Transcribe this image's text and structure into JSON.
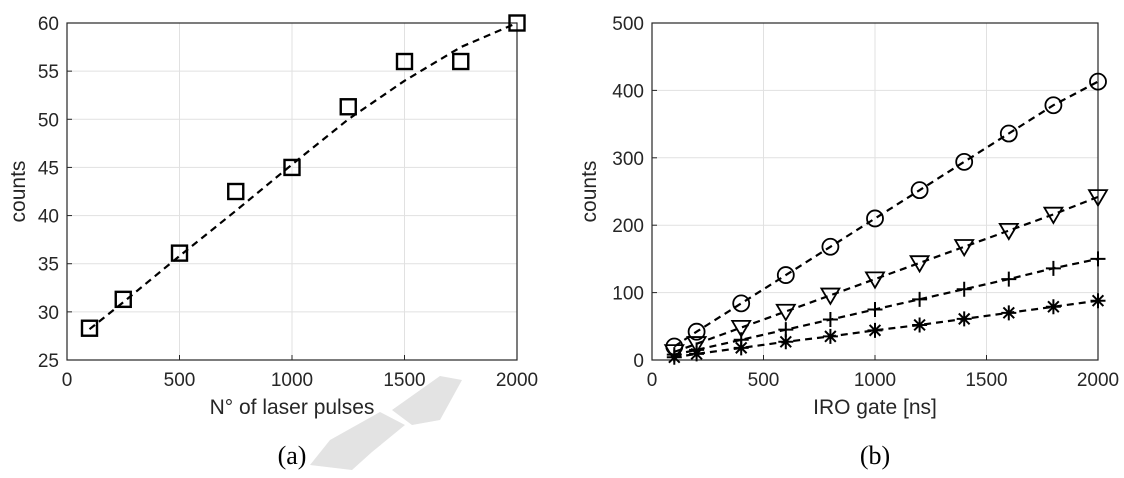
{
  "chart_data": [
    {
      "type": "scatter",
      "panel_label": "(a)",
      "xlabel": "N° of laser pulses",
      "ylabel": "counts",
      "xlim": [
        0,
        2000
      ],
      "ylim": [
        25,
        60
      ],
      "xticks": [
        0,
        500,
        1000,
        1500,
        2000
      ],
      "yticks": [
        25,
        30,
        35,
        40,
        45,
        50,
        55,
        60
      ],
      "grid": true,
      "series": [
        {
          "marker": "square",
          "x": [
            100,
            250,
            500,
            750,
            1000,
            1250,
            1500,
            1750,
            2000
          ],
          "y": [
            28.3,
            31.3,
            36.1,
            42.5,
            45.0,
            51.3,
            56.0,
            56.0,
            60.0
          ],
          "fit": {
            "style": "dashed",
            "x": [
              100,
              250,
              500,
              750,
              1000,
              1250,
              1500,
              1750,
              2000
            ],
            "y": [
              28.2,
              31.0,
              35.8,
              40.5,
              45.3,
              50.0,
              54.0,
              57.5,
              60.0
            ]
          }
        }
      ]
    },
    {
      "type": "scatter",
      "panel_label": "(b)",
      "xlabel": "IRO gate [ns]",
      "ylabel": "counts",
      "xlim": [
        0,
        2000
      ],
      "ylim": [
        0,
        500
      ],
      "xticks": [
        0,
        500,
        1000,
        1500,
        2000
      ],
      "yticks": [
        0,
        100,
        200,
        300,
        400,
        500
      ],
      "grid": true,
      "series": [
        {
          "marker": "circle",
          "x": [
            100,
            200,
            400,
            600,
            800,
            1000,
            1200,
            1400,
            1600,
            1800,
            2000
          ],
          "y": [
            20,
            42,
            84,
            126,
            168,
            210,
            252,
            294,
            336,
            378,
            413
          ]
        },
        {
          "marker": "triangle-down",
          "x": [
            100,
            200,
            400,
            600,
            800,
            1000,
            1200,
            1400,
            1600,
            1800,
            2000
          ],
          "y": [
            12,
            24,
            48,
            72,
            96,
            120,
            144,
            168,
            192,
            216,
            242
          ]
        },
        {
          "marker": "plus",
          "x": [
            100,
            200,
            400,
            600,
            800,
            1000,
            1200,
            1400,
            1600,
            1800,
            2000
          ],
          "y": [
            8,
            15,
            30,
            45,
            60,
            75,
            90,
            105,
            120,
            136,
            150
          ]
        },
        {
          "marker": "asterisk",
          "x": [
            100,
            200,
            400,
            600,
            800,
            1000,
            1200,
            1400,
            1600,
            1800,
            2000
          ],
          "y": [
            4,
            9,
            18,
            27,
            35,
            44,
            52,
            61,
            70,
            79,
            88
          ]
        }
      ]
    }
  ]
}
